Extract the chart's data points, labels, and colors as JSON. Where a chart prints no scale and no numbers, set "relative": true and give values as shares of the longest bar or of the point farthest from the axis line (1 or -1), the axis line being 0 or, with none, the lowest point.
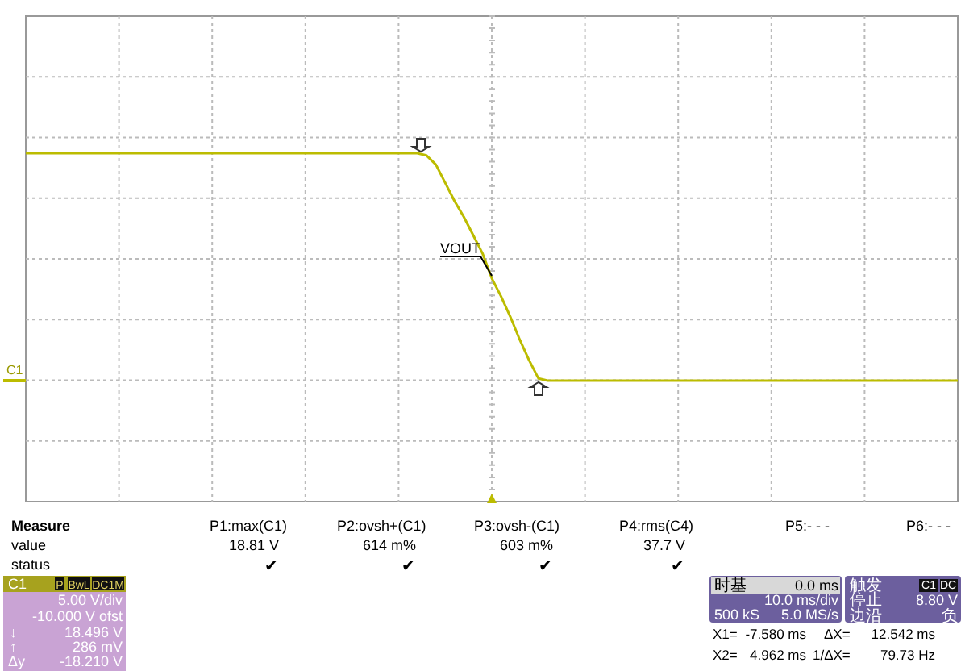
{
  "chart_data": {
    "type": "line",
    "relative": true,
    "categories": [
      null,
      null,
      null,
      null,
      null,
      null,
      null,
      null,
      null,
      null,
      null,
      null,
      null,
      null,
      null,
      null,
      null,
      null,
      null,
      null,
      null,
      null,
      null,
      null,
      null,
      null,
      null,
      null,
      null,
      null,
      null,
      null,
      null,
      null,
      null,
      null,
      null,
      null,
      null,
      null,
      null,
      null,
      null,
      null,
      null,
      null,
      null,
      null,
      null,
      null,
      null,
      null,
      null,
      null,
      null,
      null,
      null,
      null,
      null,
      null,
      null,
      null,
      null,
      null,
      null,
      null,
      null,
      null,
      null,
      null,
      null,
      null,
      null,
      null,
      null,
      null,
      null,
      null,
      null,
      null,
      null,
      null,
      null,
      null,
      null,
      null,
      null,
      null,
      null,
      null,
      null,
      null,
      null,
      null,
      null,
      null,
      null,
      null,
      null,
      null,
      null
    ],
    "series": [
      {
        "color": "#bcbc00",
        "values": [
          1,
          1,
          1,
          1,
          1,
          1,
          1,
          1,
          1,
          1,
          1,
          1,
          1,
          1,
          1,
          1,
          1,
          1,
          1,
          1,
          1,
          1,
          1,
          1,
          1,
          1,
          1,
          1,
          1,
          1,
          1,
          1,
          1,
          1,
          1,
          1,
          1,
          1,
          1,
          1,
          1,
          1,
          1,
          0.99,
          0.95,
          0.87,
          0.79,
          0.72,
          0.64,
          0.56,
          0.45,
          0.37,
          0.28,
          0.18,
          0.09,
          0.01,
          0,
          0,
          0,
          0,
          0,
          0,
          0,
          0,
          0,
          0,
          0,
          0,
          0,
          0,
          0,
          0,
          0,
          0,
          0,
          0,
          0,
          0,
          0,
          0,
          0,
          0,
          0,
          0,
          0,
          0,
          0,
          0,
          0,
          0,
          0,
          0,
          0,
          0,
          0,
          0,
          0,
          0,
          0,
          0,
          0
        ]
      }
    ],
    "grid": true,
    "annotations": [
      "VOUT",
      "C1",
      "Measure",
      "value",
      "status",
      "P1:max(C1)",
      "18.81 V",
      "✔",
      "P2:ovsh+(C1)",
      "614 m%",
      "✔",
      "P3:ovsh-(C1)",
      "603 m%",
      "✔",
      "P4:rms(C4)",
      "37.7 V",
      "✔",
      "P5:- - -",
      "P6:- - -",
      "C1",
      "P",
      "BwL",
      "DC1M",
      "5.00 V/div",
      "-10.000 V ofst",
      "↓",
      "18.496 V",
      "↑",
      "286 mV",
      "Δy",
      "-18.210 V",
      "时基",
      "0.0 ms",
      "10.0 ms/div",
      "500 kS",
      "5.0 MS/s",
      "触发",
      "C1",
      "DC",
      "停止",
      "8.80 V",
      "边沿",
      "负",
      "X1=",
      "-7.580 ms",
      "ΔX=",
      "12.542 ms",
      "X2=",
      "4.962 ms",
      "1/ΔX=",
      "79.73 Hz"
    ]
  }
}
